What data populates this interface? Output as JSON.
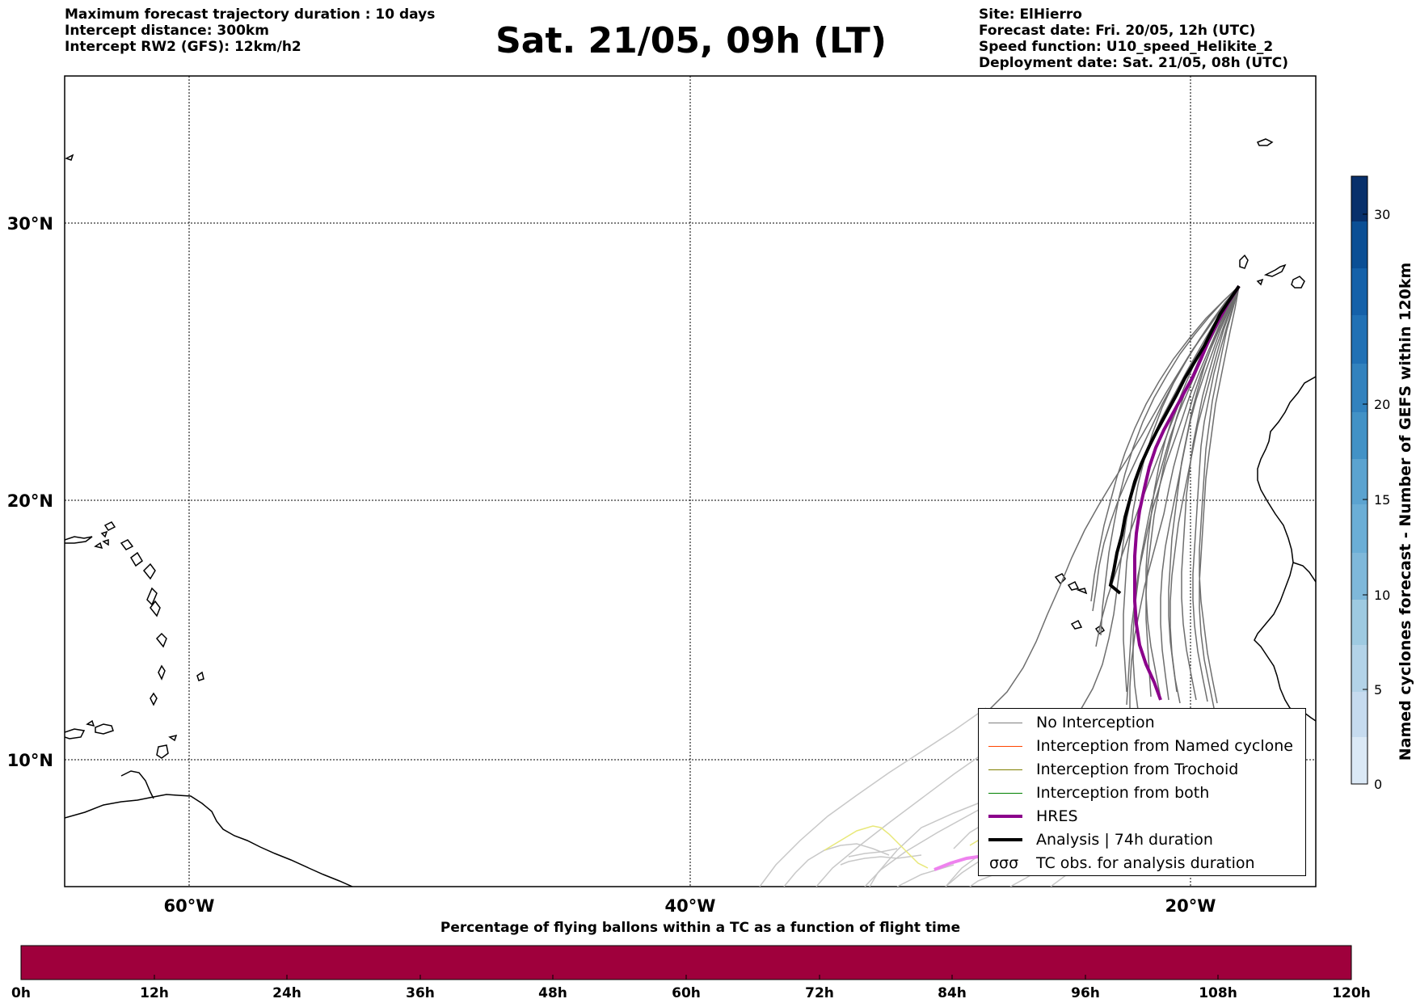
{
  "header": {
    "left_lines": [
      "Maximum forecast trajectory duration : 10 days",
      "Intercept distance: 300km",
      "Intercept RW2 (GFS):  12km/h2"
    ],
    "title": "Sat. 21/05, 09h (LT)",
    "right_lines": [
      "Site: ElHierro",
      "Forecast date: Fri. 20/05, 12h (UTC)",
      "Speed function: U10_speed_Helikite_2",
      "Deployment date: Sat. 21/05, 08h (UTC)"
    ]
  },
  "map": {
    "lon_range": [
      -65,
      15
    ],
    "lat_range": [
      5.5,
      34.8
    ],
    "lon_ticks": [
      {
        "value": -60,
        "label": "60°W"
      },
      {
        "value": -40,
        "label": "40°W"
      },
      {
        "value": -20,
        "label": "20°W"
      }
    ],
    "lat_ticks": [
      {
        "value": 30,
        "label": "30°N"
      },
      {
        "value": 20,
        "label": "20°N"
      },
      {
        "value": 10,
        "label": "10°N"
      }
    ],
    "site_lonlat": [
      -17.9,
      27.7
    ],
    "colors": {
      "grid": "#000000",
      "no_interception": "#6e6e6e",
      "faded": "#c8c8c8",
      "hres": "#8b008b",
      "analysis": "#000000",
      "yellow": "#e8e87a",
      "pink": "#ee82ee"
    }
  },
  "legend": {
    "items": [
      {
        "label": "No Interception",
        "color": "#808080",
        "width": 1.5
      },
      {
        "label": "Interception from Named cyclone",
        "color": "#ff4500",
        "width": 1.5
      },
      {
        "label": "Interception from Trochoid",
        "color": "#808000",
        "width": 1.5
      },
      {
        "label": "Interception from both",
        "color": "#008000",
        "width": 1.5
      },
      {
        "label": "HRES",
        "color": "#8b008b",
        "width": 4
      },
      {
        "label": "Analysis | 74h duration",
        "color": "#000000",
        "width": 4
      }
    ],
    "tc_obs": {
      "glyph": "σσσ",
      "label": "TC obs. for analysis duration"
    }
  },
  "colorbar": {
    "title": "Named cyclones forecast - Number of GEFS within 120km",
    "range": [
      0,
      32
    ],
    "ticks": [
      0,
      5,
      10,
      15,
      20,
      30
    ],
    "colors": [
      "#dbe9f6",
      "#c6dbef",
      "#b3d3e8",
      "#9ecae1",
      "#7fb8da",
      "#6baed6",
      "#5ba3d0",
      "#4292c6",
      "#3282be",
      "#2171b5",
      "#1561a9",
      "#0b4f95",
      "#08306b"
    ]
  },
  "time_bar": {
    "title": "Percentage of flying ballons within a TC as a function of flight time",
    "color": "#9f003c",
    "ticks": [
      "0h",
      "12h",
      "24h",
      "36h",
      "48h",
      "60h",
      "72h",
      "84h",
      "96h",
      "108h",
      "120h"
    ]
  }
}
